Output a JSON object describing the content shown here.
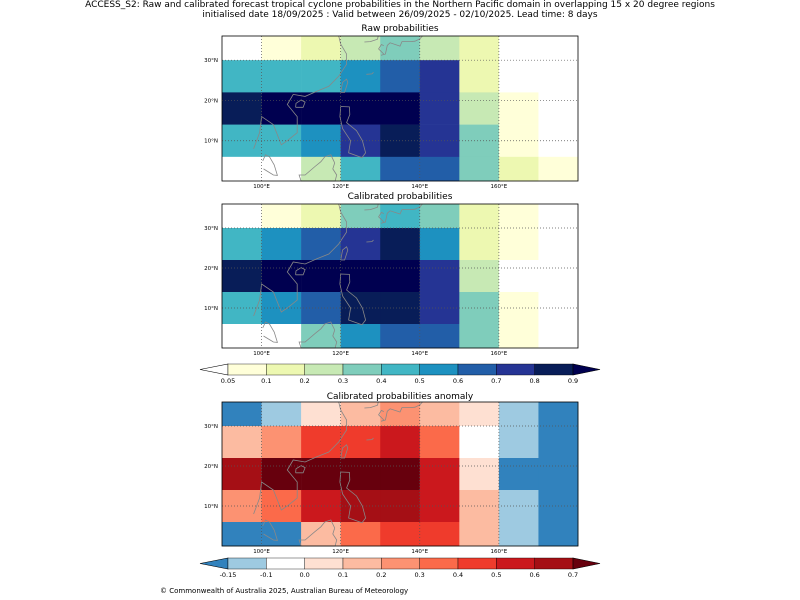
{
  "header": {
    "title_line1": "ACCESS_S2: Raw and calibrated forecast tropical cyclone probabilities in the Northern Pacific domain in overlapping 15 x 20 degree regions",
    "title_line2": "initialised date 18/09/2025 :  Valid between 26/09/2025 - 02/10/2025. Lead time: 8 days"
  },
  "footer": {
    "copyright": "© Commonwealth of Australia 2025, Australian Bureau of Meteorology"
  },
  "chart_data": [
    {
      "type": "heatmap",
      "name": "raw",
      "title": "Raw probabilities",
      "x_ticks": [
        "100°E",
        "120°E",
        "140°E",
        "160°E"
      ],
      "x_tick_values": [
        100,
        120,
        140,
        160
      ],
      "y_ticks": [
        "10°N",
        "20°N",
        "30°N"
      ],
      "y_tick_values": [
        10,
        20,
        30
      ],
      "x_range": [
        90,
        180
      ],
      "y_range": [
        0,
        36
      ],
      "column_edges": [
        90,
        100,
        110,
        120,
        130,
        140,
        150,
        160,
        170,
        180
      ],
      "row_edges": [
        0,
        6,
        14,
        22,
        30,
        36
      ],
      "values": [
        [
          0.0,
          0.05,
          0.15,
          0.22,
          0.35,
          0.25,
          0.15,
          0.0,
          0.0
        ],
        [
          0.45,
          0.45,
          0.45,
          0.55,
          0.65,
          0.75,
          0.15,
          0.0,
          0.0
        ],
        [
          0.85,
          0.95,
          0.95,
          0.95,
          0.95,
          0.75,
          0.25,
          0.05,
          0.0
        ],
        [
          0.45,
          0.45,
          0.55,
          0.75,
          0.85,
          0.75,
          0.35,
          0.05,
          0.0
        ],
        [
          0.0,
          0.0,
          0.25,
          0.45,
          0.65,
          0.65,
          0.35,
          0.15,
          0.05
        ]
      ]
    },
    {
      "type": "heatmap",
      "name": "calibrated",
      "title": "Calibrated probabilities",
      "x_ticks": [
        "100°E",
        "120°E",
        "140°E",
        "160°E"
      ],
      "x_tick_values": [
        100,
        120,
        140,
        160
      ],
      "y_ticks": [
        "10°N",
        "20°N",
        "30°N"
      ],
      "y_tick_values": [
        10,
        20,
        30
      ],
      "x_range": [
        90,
        180
      ],
      "y_range": [
        0,
        36
      ],
      "column_edges": [
        90,
        100,
        110,
        120,
        130,
        140,
        150,
        160,
        170,
        180
      ],
      "row_edges": [
        0,
        6,
        14,
        22,
        30,
        36
      ],
      "values": [
        [
          0.0,
          0.05,
          0.15,
          0.35,
          0.45,
          0.35,
          0.15,
          0.05,
          0.0
        ],
        [
          0.45,
          0.55,
          0.65,
          0.75,
          0.85,
          0.55,
          0.15,
          0.05,
          0.0
        ],
        [
          0.85,
          0.95,
          0.95,
          0.95,
          0.95,
          0.75,
          0.25,
          0.0,
          0.0
        ],
        [
          0.45,
          0.55,
          0.65,
          0.85,
          0.85,
          0.75,
          0.35,
          0.05,
          0.0
        ],
        [
          0.0,
          0.0,
          0.35,
          0.55,
          0.65,
          0.65,
          0.35,
          0.05,
          0.0
        ]
      ],
      "colorbar": {
        "ticks": [
          "0.05",
          "0.1",
          "0.2",
          "0.3",
          "0.4",
          "0.5",
          "0.6",
          "0.7",
          "0.8",
          "0.9"
        ],
        "colors": [
          "#ffffd9",
          "#edf8b1",
          "#c7e9b4",
          "#7fcdbb",
          "#41b6c4",
          "#1d91c0",
          "#225ea8",
          "#253494",
          "#081d58"
        ],
        "under_color": "#ffffff",
        "over_color": "#000050"
      }
    },
    {
      "type": "heatmap",
      "name": "anomaly",
      "title": "Calibrated probabilities anomaly",
      "x_ticks": [
        "100°E",
        "120°E",
        "140°E",
        "160°E"
      ],
      "x_tick_values": [
        100,
        120,
        140,
        160
      ],
      "y_ticks": [
        "10°N",
        "20°N",
        "30°N"
      ],
      "y_tick_values": [
        10,
        20,
        30
      ],
      "x_range": [
        90,
        180
      ],
      "y_range": [
        0,
        36
      ],
      "column_edges": [
        90,
        100,
        110,
        120,
        130,
        140,
        150,
        160,
        170,
        180
      ],
      "row_edges": [
        0,
        6,
        14,
        22,
        30,
        36
      ],
      "values": [
        [
          -0.17,
          -0.12,
          0.05,
          0.15,
          0.25,
          0.15,
          0.05,
          -0.12,
          -0.17
        ],
        [
          0.15,
          0.25,
          0.45,
          0.45,
          0.55,
          0.35,
          -0.05,
          -0.12,
          -0.17
        ],
        [
          0.65,
          0.75,
          0.75,
          0.75,
          0.75,
          0.55,
          0.05,
          -0.17,
          -0.17
        ],
        [
          0.25,
          0.35,
          0.55,
          0.65,
          0.65,
          0.55,
          0.15,
          -0.12,
          -0.17
        ],
        [
          -0.17,
          -0.17,
          0.15,
          0.35,
          0.45,
          0.45,
          0.15,
          -0.12,
          -0.17
        ]
      ],
      "colorbar": {
        "ticks": [
          "-0.15",
          "-0.1",
          "0.0",
          "0.1",
          "0.2",
          "0.3",
          "0.4",
          "0.5",
          "0.6",
          "0.7"
        ],
        "colors": [
          "#9ecae1",
          "#ffffff",
          "#fee0d2",
          "#fcbba1",
          "#fc9272",
          "#fb6a4a",
          "#ef3b2c",
          "#cb181d",
          "#a50f15"
        ],
        "under_color": "#3182bd",
        "over_color": "#67000d"
      }
    }
  ]
}
